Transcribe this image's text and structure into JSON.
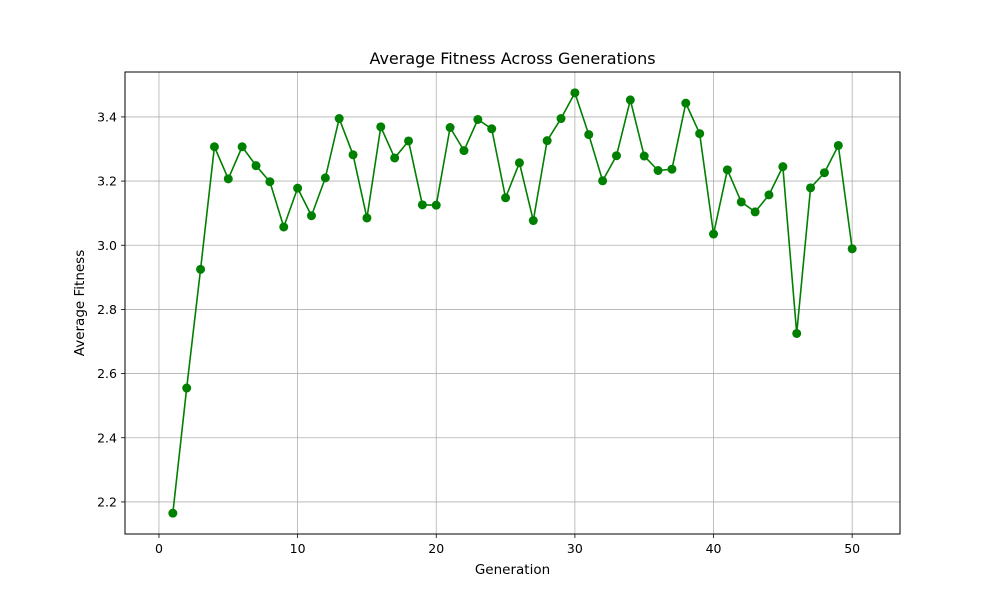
{
  "chart_data": {
    "type": "line",
    "title": "Average Fitness Across Generations",
    "xlabel": "Generation",
    "ylabel": "Average Fitness",
    "xlim": [
      -2.45,
      53.45
    ],
    "ylim": [
      2.1,
      3.54
    ],
    "xticks": [
      0,
      10,
      20,
      30,
      40,
      50
    ],
    "yticks": [
      2.2,
      2.4,
      2.6,
      2.8,
      3.0,
      3.2,
      3.4
    ],
    "ytick_labels": [
      "2.2",
      "2.4",
      "2.6",
      "2.8",
      "3.0",
      "3.2",
      "3.4"
    ],
    "grid": true,
    "line_color": "#008000",
    "marker": "circle",
    "series": [
      {
        "x": [
          1,
          2,
          3,
          4,
          5,
          6,
          7,
          8,
          9,
          10,
          11,
          12,
          13,
          14,
          15,
          16,
          17,
          18,
          19,
          20,
          21,
          22,
          23,
          24,
          25,
          26,
          27,
          28,
          29,
          30,
          31,
          32,
          33,
          34,
          35,
          36,
          37,
          38,
          39,
          40,
          41,
          42,
          43,
          44,
          45,
          46,
          47,
          48,
          49,
          50
        ],
        "values": [
          2.165,
          2.555,
          2.925,
          3.307,
          3.207,
          3.307,
          3.248,
          3.198,
          3.057,
          3.178,
          3.092,
          3.21,
          3.395,
          3.282,
          3.085,
          3.369,
          3.272,
          3.325,
          3.126,
          3.125,
          3.367,
          3.295,
          3.392,
          3.363,
          3.148,
          3.257,
          3.077,
          3.326,
          3.395,
          3.475,
          3.345,
          3.201,
          3.279,
          3.453,
          3.278,
          3.233,
          3.237,
          3.443,
          3.348,
          3.035,
          3.235,
          3.135,
          3.104,
          3.157,
          3.245,
          2.725,
          3.179,
          3.226,
          3.311,
          2.989
        ]
      }
    ]
  }
}
